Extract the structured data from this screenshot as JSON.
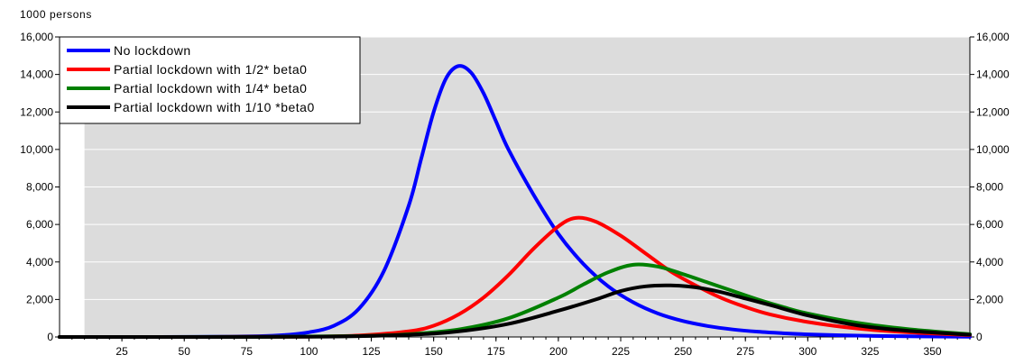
{
  "chart_data": {
    "type": "line",
    "unit_label": "1000 persons",
    "xlim": [
      0,
      365
    ],
    "ylim": [
      0,
      16000
    ],
    "x_ticks": [
      25,
      50,
      75,
      100,
      125,
      150,
      175,
      200,
      225,
      250,
      275,
      300,
      325,
      350
    ],
    "y_ticks": [
      0,
      2000,
      4000,
      6000,
      8000,
      10000,
      12000,
      14000,
      16000
    ],
    "y_tick_labels": [
      "0",
      "2,000",
      "4,000",
      "6,000",
      "8,000",
      "10,000",
      "12,000",
      "14,000",
      "16,000"
    ],
    "grid": true,
    "secondary_y_axis": true,
    "legend_position": "top-left",
    "plot_background": "#dcdcdc",
    "shaded_from_x": 10,
    "series": [
      {
        "name": "No lockdown",
        "color": "#0000ff",
        "x": [
          0,
          40,
          60,
          80,
          90,
          100,
          110,
          120,
          130,
          140,
          145,
          150,
          155,
          160,
          165,
          170,
          175,
          180,
          190,
          200,
          210,
          220,
          230,
          240,
          250,
          260,
          270,
          280,
          290,
          300,
          320,
          340,
          365
        ],
        "y": [
          0,
          2,
          10,
          40,
          100,
          250,
          600,
          1500,
          3500,
          7000,
          9500,
          12000,
          13800,
          14450,
          14100,
          13000,
          11500,
          10000,
          7600,
          5500,
          3900,
          2700,
          1850,
          1250,
          850,
          580,
          400,
          280,
          200,
          140,
          70,
          35,
          10
        ]
      },
      {
        "name": "Partial lockdown with 1/2* beta0",
        "color": "#ff0000",
        "x": [
          0,
          60,
          100,
          120,
          140,
          150,
          160,
          170,
          180,
          190,
          200,
          207,
          215,
          225,
          235,
          245,
          255,
          265,
          275,
          285,
          300,
          320,
          340,
          365
        ],
        "y": [
          0,
          3,
          20,
          80,
          300,
          600,
          1200,
          2100,
          3300,
          4700,
          5900,
          6350,
          6150,
          5400,
          4450,
          3500,
          2750,
          2100,
          1600,
          1200,
          800,
          450,
          250,
          100
        ]
      },
      {
        "name": "Partial lockdown with 1/4* beta0",
        "color": "#008000",
        "x": [
          0,
          80,
          120,
          140,
          160,
          180,
          200,
          210,
          220,
          230,
          240,
          250,
          260,
          270,
          280,
          290,
          300,
          320,
          340,
          365
        ],
        "y": [
          0,
          5,
          50,
          150,
          400,
          1000,
          2100,
          2800,
          3450,
          3850,
          3750,
          3350,
          2900,
          2450,
          2000,
          1600,
          1250,
          750,
          420,
          150
        ]
      },
      {
        "name": "Partial lockdown with 1/10 *beta0",
        "color": "#000000",
        "x": [
          0,
          100,
          140,
          160,
          180,
          200,
          215,
          225,
          235,
          245,
          255,
          265,
          275,
          285,
          300,
          320,
          340,
          365
        ],
        "y": [
          0,
          10,
          120,
          300,
          700,
          1400,
          2000,
          2450,
          2700,
          2750,
          2650,
          2400,
          2050,
          1700,
          1150,
          620,
          330,
          120
        ]
      }
    ]
  }
}
